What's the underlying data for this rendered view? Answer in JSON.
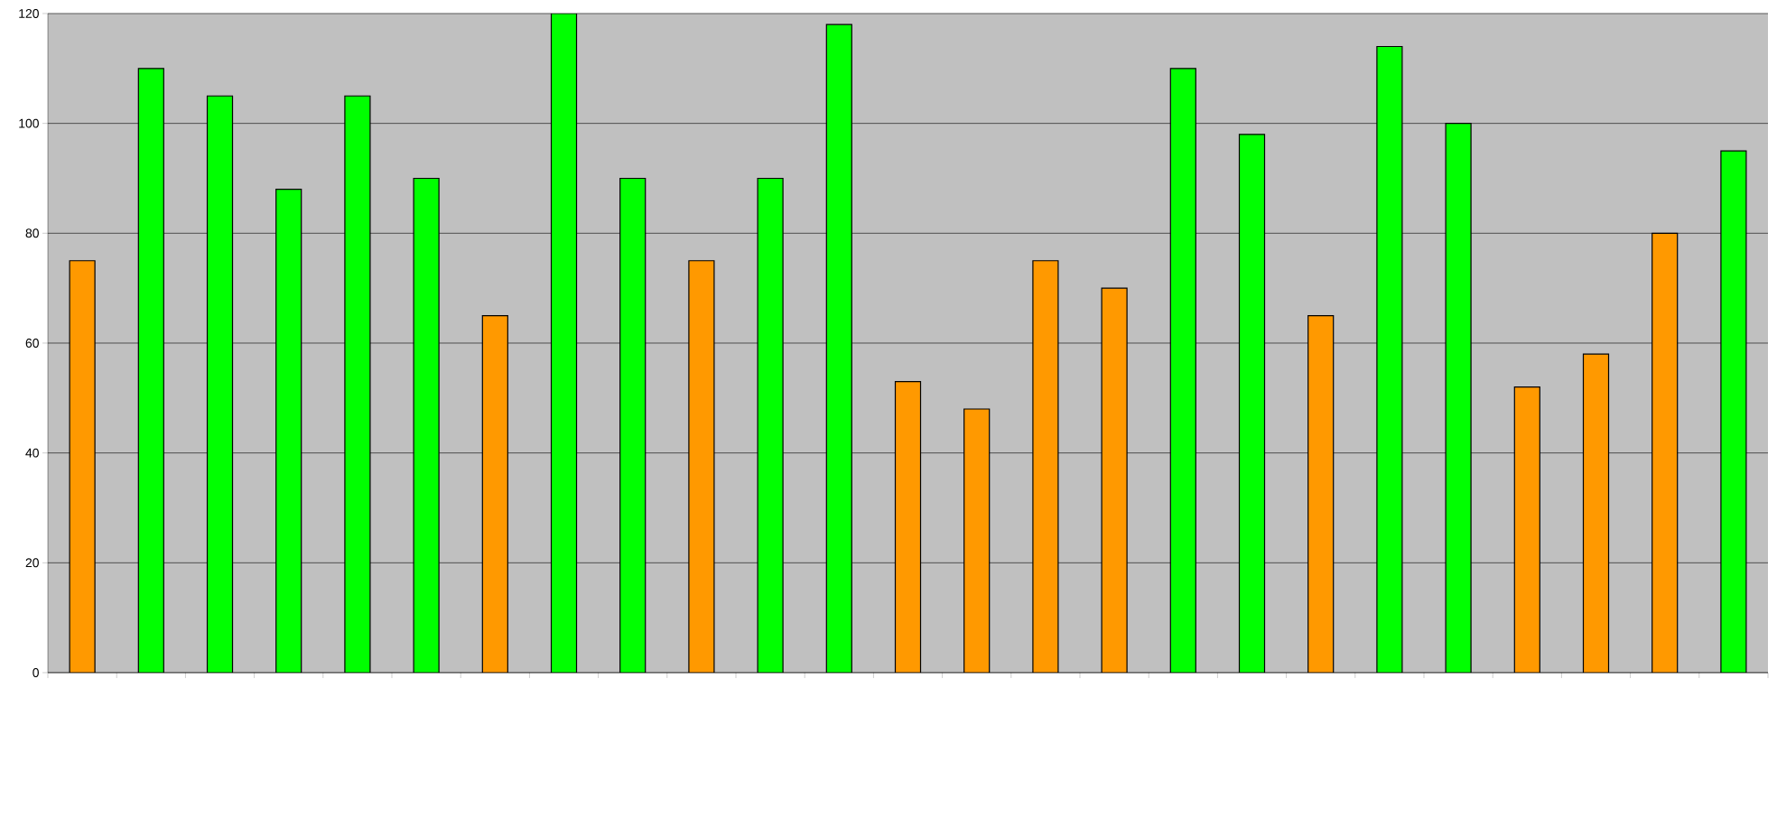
{
  "chart_data": {
    "type": "bar",
    "categories": [
      null,
      null,
      null,
      null,
      null,
      null,
      null,
      null,
      null,
      null,
      null,
      null,
      null,
      null,
      null,
      null,
      null,
      null,
      null,
      null,
      null,
      null,
      null,
      null,
      null
    ],
    "values": [
      75,
      110,
      105,
      88,
      105,
      90,
      65,
      120,
      90,
      75,
      90,
      118,
      53,
      48,
      75,
      70,
      110,
      98,
      65,
      114,
      100,
      52,
      58,
      80,
      95
    ],
    "colors": [
      "#ff9900",
      "#00ff00",
      "#00ff00",
      "#00ff00",
      "#00ff00",
      "#00ff00",
      "#ff9900",
      "#00ff00",
      "#00ff00",
      "#ff9900",
      "#00ff00",
      "#00ff00",
      "#ff9900",
      "#ff9900",
      "#ff9900",
      "#ff9900",
      "#00ff00",
      "#00ff00",
      "#ff9900",
      "#00ff00",
      "#00ff00",
      "#ff9900",
      "#ff9900",
      "#ff9900",
      "#00ff00"
    ],
    "ylim": [
      0,
      120
    ],
    "yticks": [
      0,
      20,
      40,
      60,
      80,
      100,
      120
    ],
    "grid": "y"
  }
}
